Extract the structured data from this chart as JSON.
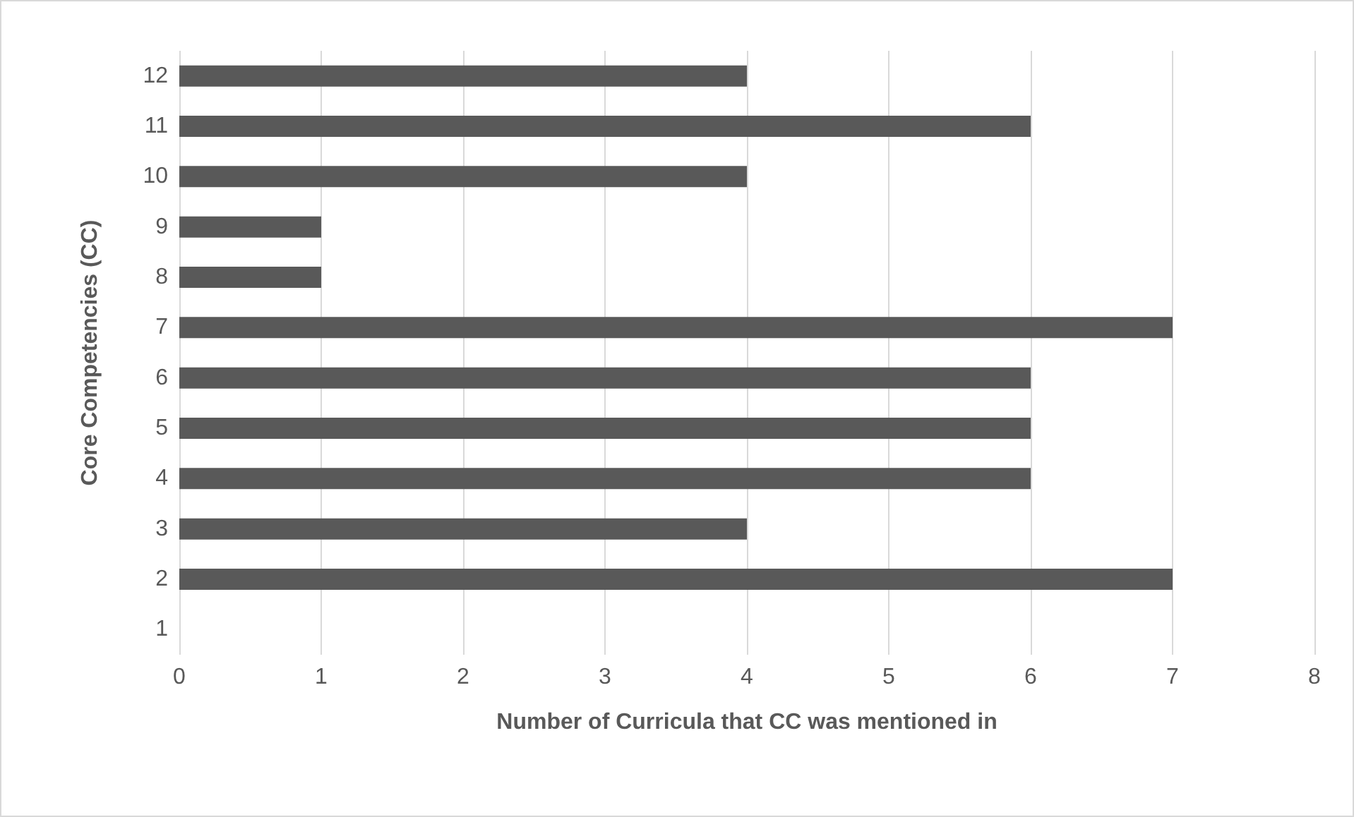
{
  "chart_data": {
    "type": "bar",
    "orientation": "horizontal",
    "xlabel": "Number of Curricula that CC was mentioned in",
    "ylabel": "Core Competencies (CC)",
    "categories": [
      "12",
      "11",
      "10",
      "9",
      "8",
      "7",
      "6",
      "5",
      "4",
      "3",
      "2",
      "1"
    ],
    "values": [
      4,
      6,
      4,
      1,
      1,
      7,
      6,
      6,
      6,
      4,
      7,
      0
    ],
    "color": "#595959",
    "xlim": [
      0,
      8
    ],
    "xticks": [
      0,
      1,
      2,
      3,
      4,
      5,
      6,
      7,
      8
    ],
    "grid": "x"
  }
}
